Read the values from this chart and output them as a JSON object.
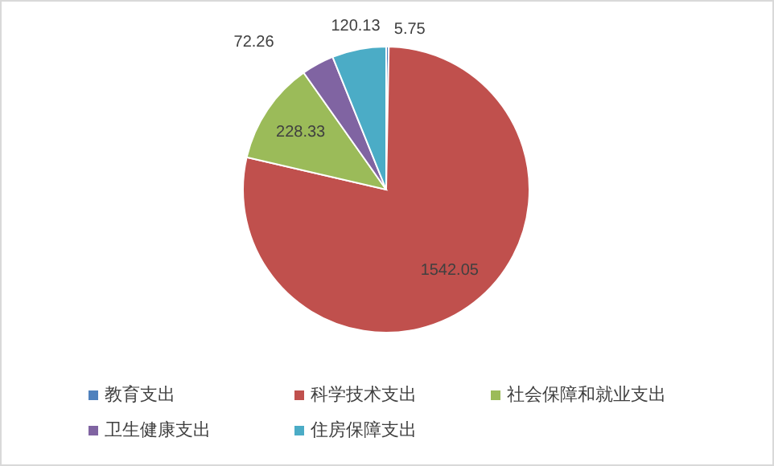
{
  "chart_data": {
    "type": "pie",
    "categories": [
      "教育支出",
      "科学技术支出",
      "社会保障和就业支出",
      "卫生健康支出",
      "住房保障支出"
    ],
    "values": [
      5.75,
      1542.05,
      228.33,
      72.26,
      120.13
    ],
    "colors": [
      "#4f81bd",
      "#c0504d",
      "#9bbb59",
      "#8064a2",
      "#4bacc6"
    ],
    "data_labels": true,
    "legend": "bottom"
  }
}
